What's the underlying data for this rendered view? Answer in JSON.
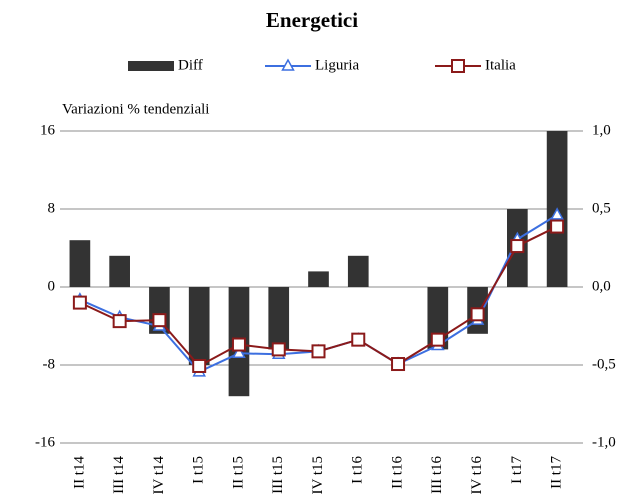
{
  "chart_data": {
    "type": "bar_line",
    "title": "Energetici",
    "y_label": "Variazioni % tendenziali",
    "categories": [
      "II t14",
      "III t14",
      "IV t14",
      "I t15",
      "II t15",
      "III t15",
      "IV t15",
      "I t16",
      "II t16",
      "III t16",
      "IV t16",
      "I t17",
      "II t17"
    ],
    "series": [
      {
        "name": "Diff",
        "type": "bar",
        "axis": "y2",
        "color": "#333333",
        "values": [
          0.3,
          0.2,
          -0.3,
          -0.5,
          -0.7,
          -0.4,
          0.1,
          0.2,
          0,
          -0.4,
          -0.3,
          0.5,
          1.0
        ]
      },
      {
        "name": "Liguria",
        "type": "line",
        "marker": "triangle",
        "color": "#3c6fe0",
        "values": [
          -1.3,
          -3.1,
          -4.0,
          -8.7,
          -6.8,
          -6.9,
          -6.6,
          -5.4,
          -7.9,
          -6.0,
          -3.4,
          4.9,
          7.4
        ]
      },
      {
        "name": "Italia",
        "type": "line",
        "marker": "square",
        "color": "#8b1a1a",
        "values": [
          -1.6,
          -3.5,
          -3.4,
          -8.1,
          -5.9,
          -6.4,
          -6.6,
          -5.4,
          -7.9,
          -5.4,
          -2.8,
          4.2,
          6.2
        ]
      }
    ],
    "ylim": [
      -16,
      16
    ],
    "yticks": [
      -16,
      -8,
      0,
      8,
      16
    ],
    "y2lim": [
      -1,
      1
    ],
    "y2ticks": [
      {
        "value": -1,
        "label": "-1,0"
      },
      {
        "value": -0.5,
        "label": "-0,5"
      },
      {
        "value": 0,
        "label": "0,0"
      },
      {
        "value": 0.5,
        "label": "0,5"
      },
      {
        "value": 1,
        "label": "1,0"
      }
    ],
    "grid": true,
    "legend": "top"
  }
}
